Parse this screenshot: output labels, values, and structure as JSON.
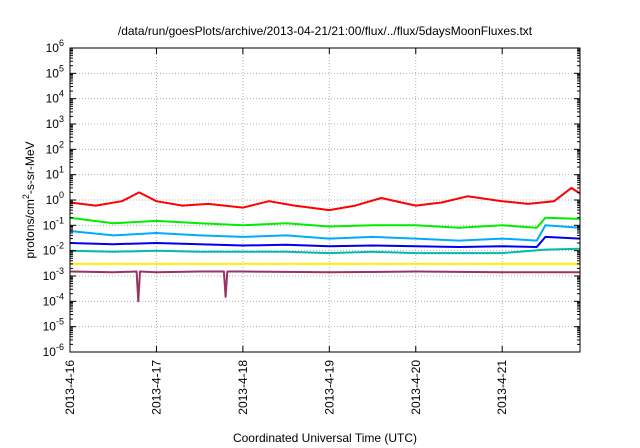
{
  "chart_data": {
    "type": "line",
    "title": "/data/run/goesPlots/archive/2013-04-21/21:00/flux/../flux/5daysMoonFluxes.txt",
    "xlabel": "Coordinated Universal Time (UTC)",
    "ylabel": "protons/cm2-s-sr-MeV",
    "ylabel_parts": [
      "protons/cm",
      "2",
      "-s-sr-MeV"
    ],
    "yscale": "log",
    "ylim": [
      1e-06,
      1000000.0
    ],
    "xlim": [
      0,
      5.9
    ],
    "grid": true,
    "legend": "none",
    "x_ticks": [
      {
        "x": 0,
        "label": "2013-4-16"
      },
      {
        "x": 1,
        "label": "2013-4-17"
      },
      {
        "x": 2,
        "label": "2013-4-18"
      },
      {
        "x": 3,
        "label": "2013-4-19"
      },
      {
        "x": 4,
        "label": "2013-4-20"
      },
      {
        "x": 5,
        "label": "2013-4-21"
      }
    ],
    "y_ticks": [
      {
        "exp": 6,
        "base": "10",
        "sup": "6"
      },
      {
        "exp": 5,
        "base": "10",
        "sup": "5"
      },
      {
        "exp": 4,
        "base": "10",
        "sup": "4"
      },
      {
        "exp": 3,
        "base": "10",
        "sup": "3"
      },
      {
        "exp": 2,
        "base": "10",
        "sup": "2"
      },
      {
        "exp": 1,
        "base": "10",
        "sup": "1"
      },
      {
        "exp": 0,
        "base": "10",
        "sup": "0"
      },
      {
        "exp": -1,
        "base": "10",
        "sup": "-1"
      },
      {
        "exp": -2,
        "base": "10",
        "sup": "-2"
      },
      {
        "exp": -3,
        "base": "10",
        "sup": "-3"
      },
      {
        "exp": -4,
        "base": "10",
        "sup": "-4"
      },
      {
        "exp": -5,
        "base": "10",
        "sup": "-5"
      },
      {
        "exp": -6,
        "base": "10",
        "sup": "-6"
      }
    ],
    "series": [
      {
        "color": "#ff0000",
        "x": [
          0,
          0.3,
          0.6,
          0.8,
          1.0,
          1.3,
          1.6,
          2.0,
          2.3,
          2.6,
          3.0,
          3.3,
          3.6,
          4.0,
          4.3,
          4.6,
          5.0,
          5.3,
          5.6,
          5.8,
          5.9
        ],
        "y": [
          0.8,
          0.6,
          0.9,
          2.0,
          0.9,
          0.6,
          0.7,
          0.5,
          0.9,
          0.6,
          0.4,
          0.6,
          1.2,
          0.6,
          0.8,
          1.4,
          0.9,
          0.7,
          0.9,
          3.0,
          1.8
        ]
      },
      {
        "color": "#00ee00",
        "x": [
          0,
          0.5,
          1.0,
          1.5,
          2.0,
          2.5,
          3.0,
          3.5,
          4.0,
          4.5,
          5.0,
          5.4,
          5.5,
          5.9
        ],
        "y": [
          0.2,
          0.12,
          0.15,
          0.12,
          0.1,
          0.12,
          0.09,
          0.1,
          0.1,
          0.08,
          0.1,
          0.08,
          0.2,
          0.18
        ]
      },
      {
        "color": "#00aaff",
        "x": [
          0,
          0.5,
          1.0,
          1.5,
          2.0,
          2.5,
          3.0,
          3.5,
          4.0,
          4.5,
          5.0,
          5.4,
          5.5,
          5.9
        ],
        "y": [
          0.06,
          0.04,
          0.05,
          0.04,
          0.035,
          0.04,
          0.03,
          0.035,
          0.03,
          0.025,
          0.03,
          0.025,
          0.1,
          0.08
        ]
      },
      {
        "color": "#0000ee",
        "x": [
          0,
          0.5,
          1.0,
          1.5,
          2.0,
          2.5,
          3.0,
          3.5,
          4.0,
          4.5,
          5.0,
          5.4,
          5.5,
          5.9
        ],
        "y": [
          0.02,
          0.018,
          0.02,
          0.018,
          0.016,
          0.017,
          0.015,
          0.016,
          0.015,
          0.014,
          0.015,
          0.014,
          0.035,
          0.03
        ]
      },
      {
        "color": "#00bbaa",
        "x": [
          0,
          0.5,
          1.0,
          1.5,
          2.0,
          2.5,
          3.0,
          3.5,
          4.0,
          4.5,
          5.0,
          5.5,
          5.9
        ],
        "y": [
          0.01,
          0.009,
          0.01,
          0.009,
          0.009,
          0.009,
          0.008,
          0.009,
          0.008,
          0.008,
          0.008,
          0.011,
          0.012
        ]
      },
      {
        "color": "#ffee00",
        "x": [
          0,
          1,
          2,
          3,
          4,
          5,
          5.9
        ],
        "y": [
          0.003,
          0.003,
          0.003,
          0.003,
          0.003,
          0.003,
          0.003
        ]
      },
      {
        "color": "#993366",
        "x": [
          0,
          0.5,
          0.77,
          0.79,
          0.81,
          1.0,
          1.5,
          1.78,
          1.8,
          1.82,
          2.0,
          3.0,
          4.0,
          5.0,
          5.9
        ],
        "y": [
          0.0015,
          0.0014,
          0.0015,
          0.0001,
          0.0015,
          0.0014,
          0.0015,
          0.0015,
          0.00015,
          0.0015,
          0.0015,
          0.0014,
          0.0015,
          0.0014,
          0.0014
        ]
      }
    ]
  }
}
